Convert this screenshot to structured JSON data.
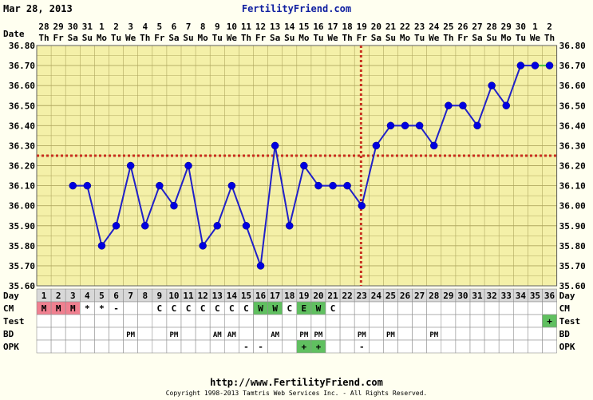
{
  "header": {
    "date": "Mar 28, 2013",
    "site": "FertilityFriend.com"
  },
  "footer": {
    "url": "http://www.FertilityFriend.com",
    "copyright": "Copyright 1998-2013 Tamtris Web Services Inc. - All Rights Reserved."
  },
  "row_labels": {
    "date": "Date",
    "day": "Day",
    "cm": "CM",
    "test": "Test",
    "bd": "BD",
    "opk": "OPK"
  },
  "colors": {
    "chart_bg": "#f4f0a8",
    "grid": "#b0a860",
    "line": "#2020c8",
    "point": "#0000e0",
    "coverline": "#c83020",
    "ovulation_line": "#c83020",
    "final_segment": "#40c040",
    "label_cell": "#d8d8d8",
    "menses": "#f08090",
    "fertile": "#60c060"
  },
  "chart_data": {
    "type": "line",
    "title": "",
    "ylabel": "",
    "xlabel": "",
    "ylim": [
      35.6,
      36.8
    ],
    "y_ticks": [
      "35.60",
      "35.70",
      "35.80",
      "35.90",
      "36.00",
      "36.10",
      "36.20",
      "36.30",
      "36.40",
      "36.50",
      "36.60",
      "36.70",
      "36.80"
    ],
    "dates": [
      "28",
      "29",
      "30",
      "31",
      "1",
      "2",
      "3",
      "4",
      "5",
      "6",
      "7",
      "8",
      "9",
      "10",
      "11",
      "12",
      "13",
      "14",
      "15",
      "16",
      "17",
      "18",
      "19",
      "20",
      "21",
      "22",
      "23",
      "24",
      "25",
      "26",
      "27",
      "28",
      "29",
      "30",
      "1",
      "2"
    ],
    "weekdays": [
      "Th",
      "Fr",
      "Sa",
      "Su",
      "Mo",
      "Tu",
      "We",
      "Th",
      "Fr",
      "Sa",
      "Su",
      "Mo",
      "Tu",
      "We",
      "Th",
      "Fr",
      "Sa",
      "Su",
      "Mo",
      "Tu",
      "We",
      "Th",
      "Fr",
      "Sa",
      "Su",
      "Mo",
      "Tu",
      "We",
      "Th",
      "Fr",
      "Sa",
      "Su",
      "Mo",
      "Tu",
      "We",
      "Th"
    ],
    "cycle_days": [
      "1",
      "2",
      "3",
      "4",
      "5",
      "6",
      "7",
      "8",
      "9",
      "10",
      "11",
      "12",
      "13",
      "14",
      "15",
      "16",
      "17",
      "18",
      "19",
      "20",
      "21",
      "22",
      "23",
      "24",
      "25",
      "26",
      "27",
      "28",
      "29",
      "30",
      "31",
      "32",
      "33",
      "34",
      "35",
      "36"
    ],
    "temperatures": [
      null,
      null,
      36.1,
      36.1,
      35.8,
      35.9,
      36.2,
      35.9,
      36.1,
      36.0,
      36.2,
      35.8,
      35.9,
      36.1,
      35.9,
      35.7,
      36.3,
      35.9,
      36.2,
      36.1,
      36.1,
      36.1,
      36.0,
      36.3,
      36.4,
      36.4,
      36.4,
      36.3,
      36.5,
      36.5,
      36.4,
      36.6,
      36.5,
      36.7,
      36.7,
      36.7
    ],
    "coverline": 36.25,
    "ovulation_day": 23,
    "cm": [
      "M",
      "M",
      "M",
      "*",
      "*",
      "-",
      "",
      "",
      "C",
      "C",
      "C",
      "C",
      "C",
      "C",
      "C",
      "W",
      "W",
      "C",
      "E",
      "W",
      "C",
      "",
      "",
      "",
      "",
      "",
      "",
      "",
      "",
      "",
      "",
      "",
      "",
      "",
      "",
      ""
    ],
    "test": [
      "",
      "",
      "",
      "",
      "",
      "",
      "",
      "",
      "",
      "",
      "",
      "",
      "",
      "",
      "",
      "",
      "",
      "",
      "",
      "",
      "",
      "",
      "",
      "",
      "",
      "",
      "",
      "",
      "",
      "",
      "",
      "",
      "",
      "",
      "",
      "+"
    ],
    "bd": [
      "",
      "",
      "",
      "",
      "",
      "",
      "PM",
      "",
      "",
      "PM",
      "",
      "",
      "AM",
      "AM",
      "",
      "",
      "AM",
      "",
      "PM",
      "PM",
      "",
      "",
      "PM",
      "",
      "PM",
      "",
      "",
      "PM",
      "",
      "",
      "",
      "",
      "",
      "",
      "",
      ""
    ],
    "opk": [
      "",
      "",
      "",
      "",
      "",
      "",
      "",
      "",
      "",
      "",
      "",
      "",
      "",
      "",
      "-",
      "-",
      "",
      "",
      "+",
      "+",
      "",
      "",
      "-",
      "",
      "",
      "",
      "",
      "",
      "",
      "",
      "",
      "",
      "",
      "",
      "",
      ""
    ]
  }
}
